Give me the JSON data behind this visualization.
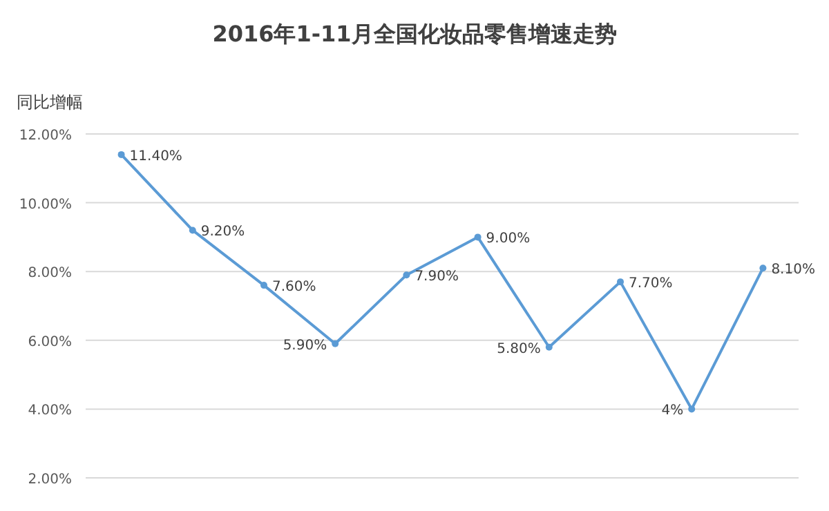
{
  "chart_data": {
    "type": "line",
    "title": "2016年1-11月全国化妆品零售增速走势",
    "ylabel": "同比增幅",
    "categories": [
      null,
      null,
      null,
      null,
      null,
      null,
      null,
      null,
      null,
      null
    ],
    "series": [
      {
        "color": "#5b9bd5",
        "values": [
          11.4,
          9.2,
          7.6,
          5.9,
          7.9,
          9.0,
          5.8,
          7.7,
          4,
          8.1
        ],
        "value_labels": [
          "11.40%",
          "9.20%",
          "7.60%",
          "5.90%",
          "7.90%",
          "9.00%",
          "5.80%",
          "7.70%",
          "4%",
          "8.10%"
        ]
      }
    ],
    "ylim": [
      2,
      12
    ],
    "yticks": [
      {
        "value": 2,
        "label": "2.00%"
      },
      {
        "value": 4,
        "label": "4.00%"
      },
      {
        "value": 6,
        "label": "6.00%"
      },
      {
        "value": 8,
        "label": "8.00%"
      },
      {
        "value": 10,
        "label": "10.00%"
      },
      {
        "value": 12,
        "label": "12.00%"
      }
    ],
    "grid": "y",
    "marker": "circle",
    "line_style": "solid"
  }
}
